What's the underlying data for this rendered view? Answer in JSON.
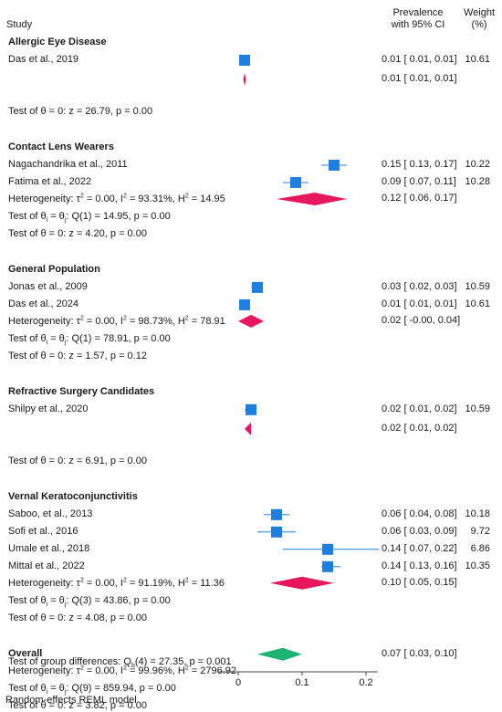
{
  "header": {
    "study": "Study",
    "prevalence_line1": "Prevalence",
    "prevalence_line2": "with 95% CI",
    "weight_line1": "Weight",
    "weight_line2": "(%)"
  },
  "footer": "Random-effects REML model",
  "group_differences": "Test of group differences: Q_b(4) = 27.35, p = 0.001",
  "chart_data": {
    "type": "forest",
    "xlim": [
      0,
      0.2
    ],
    "xticks": [
      0,
      0.1,
      0.2
    ],
    "xtick_labels": [
      "0",
      "0.1",
      "0.2"
    ],
    "colors": {
      "study": "#1f7fe0",
      "subgroup_diamond": "#e8175d",
      "overall_diamond": "#1db472"
    },
    "groups": [
      {
        "name": "Allergic Eye Disease",
        "studies": [
          {
            "label": "Das et al., 2019",
            "est": 0.01,
            "lo": 0.01,
            "hi": 0.01,
            "ci_text": "0.01 [  0.01,  0.01]",
            "weight": "10.61"
          }
        ],
        "summary": {
          "est": 0.01,
          "lo": 0.01,
          "hi": 0.01,
          "ci_text": "0.01 [  0.01,  0.01]"
        },
        "stats": [
          "Test of θ = 0: z = 26.79, p = 0.00"
        ]
      },
      {
        "name": "Contact Lens Wearers",
        "studies": [
          {
            "label": "Nagachandrika et al., 2011",
            "est": 0.15,
            "lo": 0.13,
            "hi": 0.17,
            "ci_text": "0.15 [  0.13,  0.17]",
            "weight": "10.22"
          },
          {
            "label": "Fatima et al., 2022",
            "est": 0.09,
            "lo": 0.07,
            "hi": 0.11,
            "ci_text": "0.09 [  0.07,  0.11]",
            "weight": "10.28"
          }
        ],
        "summary": {
          "est": 0.12,
          "lo": 0.06,
          "hi": 0.17,
          "ci_text": "0.12 [  0.06,  0.17]"
        },
        "stats": [
          "Heterogeneity: τ² = 0.00, I² = 93.31%, H² = 14.95",
          "Test of θi = θj: Q(1) = 14.95, p = 0.00",
          "Test of θ = 0: z = 4.20, p = 0.00"
        ]
      },
      {
        "name": "General Population",
        "studies": [
          {
            "label": "Jonas et al., 2009",
            "est": 0.03,
            "lo": 0.02,
            "hi": 0.03,
            "ci_text": "0.03 [  0.02,  0.03]",
            "weight": "10.59"
          },
          {
            "label": "Das et al., 2024",
            "est": 0.01,
            "lo": 0.01,
            "hi": 0.01,
            "ci_text": "0.01 [  0.01,  0.01]",
            "weight": "10.61"
          }
        ],
        "summary": {
          "est": 0.02,
          "lo": 0.0,
          "hi": 0.04,
          "ci_text": "0.02 [ -0.00,  0.04]"
        },
        "stats": [
          "Heterogeneity: τ² = 0.00, I² = 98.73%, H² = 78.91",
          "Test of θi = θj: Q(1) = 78.91, p = 0.00",
          "Test of θ = 0: z = 1.57, p = 0.12"
        ]
      },
      {
        "name": "Refractive Surgery Candidates",
        "studies": [
          {
            "label": "Shilpy et al., 2020",
            "est": 0.02,
            "lo": 0.01,
            "hi": 0.02,
            "ci_text": "0.02 [  0.01,  0.02]",
            "weight": "10.59"
          }
        ],
        "summary": {
          "est": 0.02,
          "lo": 0.01,
          "hi": 0.02,
          "ci_text": "0.02 [  0.01,  0.02]"
        },
        "stats": [
          "Test of θ = 0: z = 6.91, p = 0.00"
        ]
      },
      {
        "name": "Vernal Keratoconjunctivitis",
        "studies": [
          {
            "label": "Saboo, et al., 2013",
            "est": 0.06,
            "lo": 0.04,
            "hi": 0.08,
            "ci_text": "0.06 [  0.04,  0.08]",
            "weight": "10.18"
          },
          {
            "label": "Sofi et al., 2016",
            "est": 0.06,
            "lo": 0.03,
            "hi": 0.09,
            "ci_text": "0.06 [  0.03,  0.09]",
            "weight": "9.72"
          },
          {
            "label": "Umale et al., 2018",
            "est": 0.14,
            "lo": 0.07,
            "hi": 0.22,
            "ci_text": "0.14 [  0.07,  0.22]",
            "weight": "6.86"
          },
          {
            "label": "Mittal et al., 2022",
            "est": 0.14,
            "lo": 0.13,
            "hi": 0.16,
            "ci_text": "0.14 [  0.13,  0.16]",
            "weight": "10.35"
          }
        ],
        "summary": {
          "est": 0.1,
          "lo": 0.05,
          "hi": 0.15,
          "ci_text": "0.10 [  0.05,  0.15]"
        },
        "stats": [
          "Heterogeneity: τ² = 0.00, I² = 91.19%, H² = 11.36",
          "Test of θi = θj: Q(3) = 43.86, p = 0.00",
          "Test of θ = 0: z = 4.08, p = 0.00"
        ]
      }
    ],
    "overall": {
      "name": "Overall",
      "est": 0.07,
      "lo": 0.03,
      "hi": 0.1,
      "ci_text": "0.07 [  0.03,  0.10]",
      "stats": [
        "Heterogeneity: τ² = 0.00, I² = 99.96%, H² = 2796.92",
        "Test of θi = θj: Q(9) = 859.94, p = 0.00",
        "Test of θ = 0: z = 3.82, p = 0.00"
      ]
    }
  }
}
